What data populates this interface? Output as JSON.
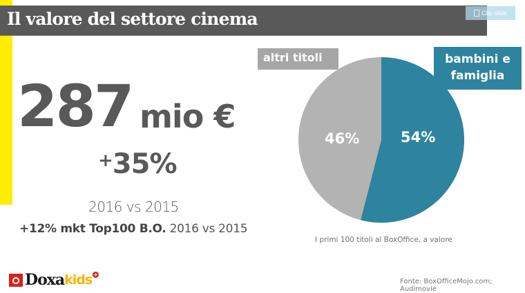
{
  "header": {
    "title": "Il valore del settore cinema",
    "clip_button": "Clip slide",
    "clip_icon": "clipboard-icon"
  },
  "headline": {
    "value": "287",
    "unit": "mio €",
    "growth_sign": "+",
    "growth_value": "35%",
    "comparison": "2016 vs 2015",
    "mkt_bold": "+12% mkt Top100 B.O.",
    "mkt_rest": " 2016 vs 2015"
  },
  "pie": {
    "label_altri": "altri titoli",
    "label_bambini": "bambini e famiglia",
    "pct_altri": "46%",
    "pct_bambini": "54%",
    "caption": "I primi 100 titoli al BoxOffice, a valore",
    "colors": {
      "bambini": "#2e849f",
      "altri": "#b3b3b3"
    }
  },
  "footer": {
    "source": "Fonte: BoxOfficeMojo.com; Audimovie",
    "logo_doxa": "Doxa",
    "logo_kids": "kids",
    "logo_plus": "+"
  },
  "theme": {
    "accent_yellow": "#ffed00",
    "title_bar": "#595959",
    "text_gray": "#595959"
  },
  "chart_data": {
    "type": "pie",
    "title": "Il valore del settore cinema",
    "subtitle": "I primi 100 titoli al BoxOffice, a valore",
    "categories": [
      "bambini e famiglia",
      "altri titoli"
    ],
    "values": [
      54,
      46
    ],
    "colors": [
      "#2e849f",
      "#b3b3b3"
    ],
    "annotations": [
      "287 mio €",
      "+35% 2016 vs 2015",
      "+12% mkt Top100 B.O. 2016 vs 2015"
    ],
    "source": "Fonte: BoxOfficeMojo.com; Audimovie"
  }
}
